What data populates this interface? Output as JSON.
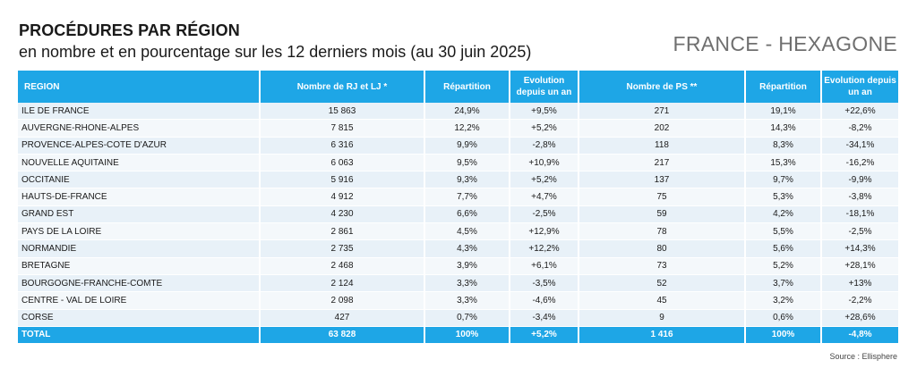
{
  "header": {
    "title": "PROCÉDURES PAR RÉGION",
    "subtitle": "en nombre et en pourcentage sur les 12 derniers mois (au 30 juin 2025)",
    "region_tag": "FRANCE - HEXAGONE"
  },
  "table": {
    "columns": [
      "REGION",
      "Nombre de RJ et LJ *",
      "Répartition",
      "Evolution depuis un an",
      "Nombre de PS **",
      "Répartition",
      "Evolution depuis un an"
    ],
    "rows": [
      [
        "ILE DE FRANCE",
        "15 863",
        "24,9%",
        "+9,5%",
        "271",
        "19,1%",
        "+22,6%"
      ],
      [
        "AUVERGNE-RHONE-ALPES",
        "7 815",
        "12,2%",
        "+5,2%",
        "202",
        "14,3%",
        "-8,2%"
      ],
      [
        "PROVENCE-ALPES-COTE D'AZUR",
        "6 316",
        "9,9%",
        "-2,8%",
        "118",
        "8,3%",
        "-34,1%"
      ],
      [
        "NOUVELLE AQUITAINE",
        "6 063",
        "9,5%",
        "+10,9%",
        "217",
        "15,3%",
        "-16,2%"
      ],
      [
        "OCCITANIE",
        "5 916",
        "9,3%",
        "+5,2%",
        "137",
        "9,7%",
        "-9,9%"
      ],
      [
        "HAUTS-DE-FRANCE",
        "4 912",
        "7,7%",
        "+4,7%",
        "75",
        "5,3%",
        "-3,8%"
      ],
      [
        "GRAND EST",
        "4 230",
        "6,6%",
        "-2,5%",
        "59",
        "4,2%",
        "-18,1%"
      ],
      [
        "PAYS DE LA LOIRE",
        "2 861",
        "4,5%",
        "+12,9%",
        "78",
        "5,5%",
        "-2,5%"
      ],
      [
        "NORMANDIE",
        "2 735",
        "4,3%",
        "+12,2%",
        "80",
        "5,6%",
        "+14,3%"
      ],
      [
        "BRETAGNE",
        "2 468",
        "3,9%",
        "+6,1%",
        "73",
        "5,2%",
        "+28,1%"
      ],
      [
        "BOURGOGNE-FRANCHE-COMTE",
        "2 124",
        "3,3%",
        "-3,5%",
        "52",
        "3,7%",
        "+13%"
      ],
      [
        "CENTRE - VAL DE LOIRE",
        "2 098",
        "3,3%",
        "-4,6%",
        "45",
        "3,2%",
        "-2,2%"
      ],
      [
        "CORSE",
        "427",
        "0,7%",
        "-3,4%",
        "9",
        "0,6%",
        "+28,6%"
      ]
    ],
    "total": [
      "TOTAL",
      "63 828",
      "100%",
      "+5,2%",
      "1 416",
      "100%",
      "-4,8%"
    ]
  },
  "footer": {
    "source": "Source : Ellisphere"
  },
  "colors": {
    "header_bg": "#1ea6e6",
    "row_odd": "#e8f1f8",
    "row_even": "#f4f8fb",
    "tag_text": "#6f6f6f"
  }
}
